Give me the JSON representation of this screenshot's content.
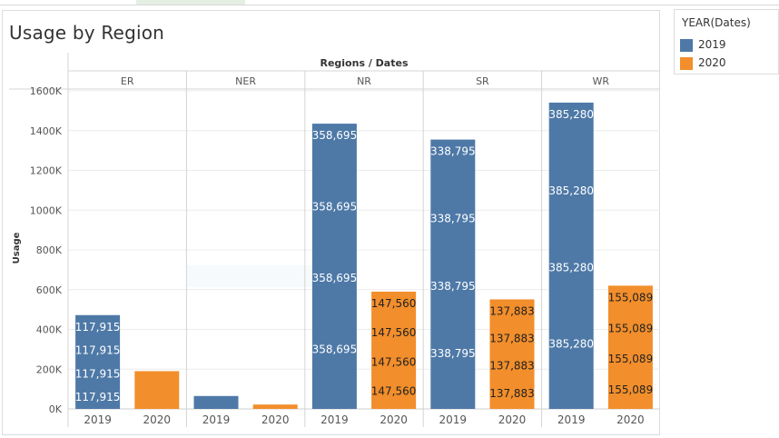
{
  "title": "Usage by Region",
  "legend": {
    "title": "YEAR(Dates)",
    "items": [
      {
        "label": "2019",
        "color": "#4e79a7"
      },
      {
        "label": "2020",
        "color": "#f28e2b"
      }
    ]
  },
  "chart_data": {
    "type": "bar",
    "stacked": true,
    "column_header": "Regions / Dates",
    "ylabel": "Usage",
    "ylim": [
      0,
      1600000
    ],
    "y_ticks": [
      {
        "value": 0,
        "label": "0K"
      },
      {
        "value": 200000,
        "label": "200K"
      },
      {
        "value": 400000,
        "label": "400K"
      },
      {
        "value": 600000,
        "label": "600K"
      },
      {
        "value": 800000,
        "label": "800K"
      },
      {
        "value": 1000000,
        "label": "1000K"
      },
      {
        "value": 1200000,
        "label": "1200K"
      },
      {
        "value": 1400000,
        "label": "1400K"
      },
      {
        "value": 1600000,
        "label": "1600K"
      }
    ],
    "grid": true,
    "regions": [
      {
        "name": "ER",
        "bars": [
          {
            "year": "2019",
            "total": 472000,
            "labels": [
              "117,915",
              "117,915",
              "117,915",
              "117,915"
            ]
          },
          {
            "year": "2020",
            "total": 190000,
            "labels": []
          }
        ]
      },
      {
        "name": "NER",
        "bars": [
          {
            "year": "2019",
            "total": 65000,
            "labels": []
          },
          {
            "year": "2020",
            "total": 22000,
            "labels": []
          }
        ]
      },
      {
        "name": "NR",
        "bars": [
          {
            "year": "2019",
            "total": 1435000,
            "labels": [
              "358,695",
              "358,695",
              "358,695",
              "358,695"
            ]
          },
          {
            "year": "2020",
            "total": 590000,
            "labels": [
              "147,560",
              "147,560",
              "147,560",
              "147,560"
            ]
          }
        ]
      },
      {
        "name": "SR",
        "bars": [
          {
            "year": "2019",
            "total": 1355000,
            "labels": [
              "338,795",
              "338,795",
              "338,795",
              "338,795"
            ]
          },
          {
            "year": "2020",
            "total": 551000,
            "labels": [
              "137,883",
              "137,883",
              "137,883",
              "137,883"
            ]
          }
        ]
      },
      {
        "name": "WR",
        "bars": [
          {
            "year": "2019",
            "total": 1541000,
            "labels": [
              "385,280",
              "385,280",
              "385,280",
              "385,280"
            ]
          },
          {
            "year": "2020",
            "total": 620000,
            "labels": [
              "155,089",
              "155,089",
              "155,089",
              "155,089"
            ]
          }
        ]
      }
    ]
  }
}
